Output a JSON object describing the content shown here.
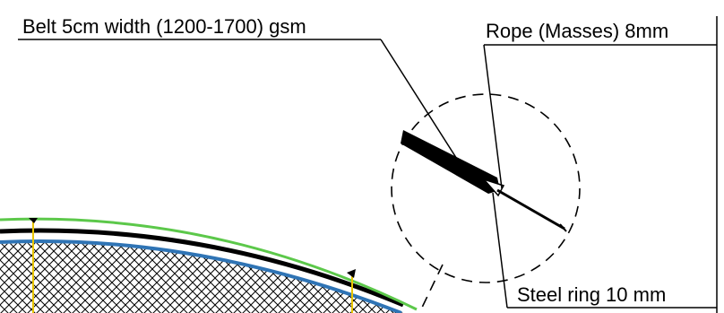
{
  "labels": {
    "belt": "Belt 5cm width (1200-1700) gsm",
    "rope": "Rope (Masses) 8mm",
    "steel_ring": "Steel ring 10 mm"
  },
  "colors": {
    "outer_edge": "#5cc84a",
    "inner_edge": "#2f74b5",
    "belt_line": "#000000",
    "mesh": "#000000",
    "yellow_marker": "#e8c500",
    "background": "#ffffff"
  }
}
